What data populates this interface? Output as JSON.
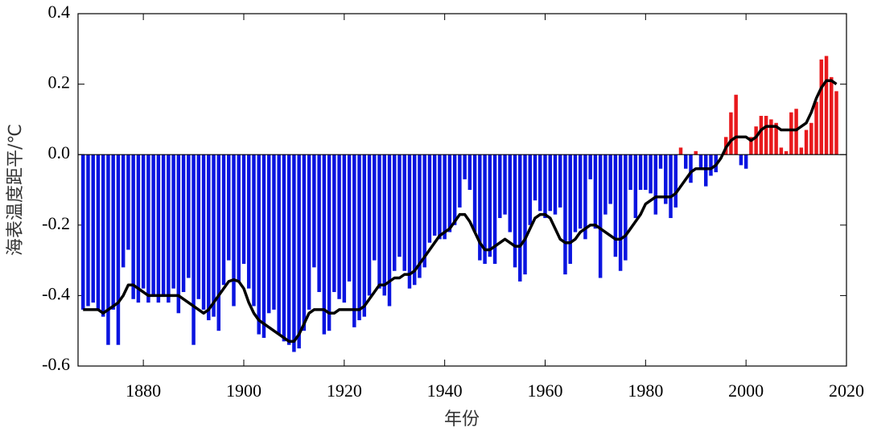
{
  "chart_data": {
    "type": "bar",
    "y_label": "海表温度距平/℃",
    "x_label": "年份",
    "x": [
      1868,
      1869,
      1870,
      1871,
      1872,
      1873,
      1874,
      1875,
      1876,
      1877,
      1878,
      1879,
      1880,
      1881,
      1882,
      1883,
      1884,
      1885,
      1886,
      1887,
      1888,
      1889,
      1890,
      1891,
      1892,
      1893,
      1894,
      1895,
      1896,
      1897,
      1898,
      1899,
      1900,
      1901,
      1902,
      1903,
      1904,
      1905,
      1906,
      1907,
      1908,
      1909,
      1910,
      1911,
      1912,
      1913,
      1914,
      1915,
      1916,
      1917,
      1918,
      1919,
      1920,
      1921,
      1922,
      1923,
      1924,
      1925,
      1926,
      1927,
      1928,
      1929,
      1930,
      1931,
      1932,
      1933,
      1934,
      1935,
      1936,
      1937,
      1938,
      1939,
      1940,
      1941,
      1942,
      1943,
      1944,
      1945,
      1946,
      1947,
      1948,
      1949,
      1950,
      1951,
      1952,
      1953,
      1954,
      1955,
      1956,
      1957,
      1958,
      1959,
      1960,
      1961,
      1962,
      1963,
      1964,
      1965,
      1966,
      1967,
      1968,
      1969,
      1970,
      1971,
      1972,
      1973,
      1974,
      1975,
      1976,
      1977,
      1978,
      1979,
      1980,
      1981,
      1982,
      1983,
      1984,
      1985,
      1986,
      1987,
      1988,
      1989,
      1990,
      1991,
      1992,
      1993,
      1994,
      1995,
      1996,
      1997,
      1998,
      1999,
      2000,
      2001,
      2002,
      2003,
      2004,
      2005,
      2006,
      2007,
      2008,
      2009,
      2010,
      2011,
      2012,
      2013,
      2014,
      2015,
      2016,
      2017,
      2018
    ],
    "values": [
      -0.44,
      -0.43,
      -0.42,
      -0.44,
      -0.46,
      -0.54,
      -0.44,
      -0.54,
      -0.32,
      -0.27,
      -0.41,
      -0.42,
      -0.38,
      -0.42,
      -0.4,
      -0.42,
      -0.4,
      -0.42,
      -0.38,
      -0.45,
      -0.39,
      -0.35,
      -0.54,
      -0.41,
      -0.44,
      -0.47,
      -0.46,
      -0.5,
      -0.37,
      -0.3,
      -0.43,
      -0.36,
      -0.31,
      -0.38,
      -0.43,
      -0.51,
      -0.52,
      -0.45,
      -0.44,
      -0.51,
      -0.53,
      -0.54,
      -0.56,
      -0.55,
      -0.5,
      -0.44,
      -0.32,
      -0.39,
      -0.51,
      -0.5,
      -0.39,
      -0.41,
      -0.42,
      -0.36,
      -0.49,
      -0.47,
      -0.46,
      -0.4,
      -0.3,
      -0.38,
      -0.4,
      -0.43,
      -0.33,
      -0.29,
      -0.33,
      -0.38,
      -0.37,
      -0.35,
      -0.32,
      -0.25,
      -0.23,
      -0.24,
      -0.24,
      -0.22,
      -0.2,
      -0.15,
      -0.07,
      -0.1,
      -0.22,
      -0.3,
      -0.31,
      -0.29,
      -0.31,
      -0.18,
      -0.17,
      -0.22,
      -0.32,
      -0.36,
      -0.34,
      -0.2,
      -0.13,
      -0.16,
      -0.18,
      -0.16,
      -0.17,
      -0.15,
      -0.34,
      -0.31,
      -0.22,
      -0.21,
      -0.24,
      -0.07,
      -0.21,
      -0.35,
      -0.17,
      -0.14,
      -0.29,
      -0.33,
      -0.3,
      -0.1,
      -0.18,
      -0.1,
      -0.1,
      -0.11,
      -0.17,
      -0.04,
      -0.14,
      -0.18,
      -0.15,
      0.02,
      -0.04,
      -0.08,
      0.01,
      -0.04,
      -0.09,
      -0.06,
      -0.05,
      0.0,
      0.05,
      0.12,
      0.17,
      -0.03,
      -0.04,
      0.05,
      0.08,
      0.11,
      0.11,
      0.1,
      0.09,
      0.02,
      0.01,
      0.12,
      0.13,
      0.02,
      0.07,
      0.09,
      0.15,
      0.27,
      0.28,
      0.22,
      0.18
    ],
    "positive_color": "#e8191c",
    "negative_color": "#0a14e0",
    "smooth": {
      "color": "#000000",
      "values": [
        -0.44,
        -0.44,
        -0.44,
        -0.44,
        -0.45,
        -0.44,
        -0.43,
        -0.42,
        -0.4,
        -0.37,
        -0.37,
        -0.38,
        -0.39,
        -0.4,
        -0.4,
        -0.4,
        -0.4,
        -0.4,
        -0.4,
        -0.4,
        -0.41,
        -0.42,
        -0.43,
        -0.44,
        -0.45,
        -0.44,
        -0.42,
        -0.4,
        -0.38,
        -0.36,
        -0.355,
        -0.36,
        -0.38,
        -0.42,
        -0.45,
        -0.47,
        -0.48,
        -0.49,
        -0.5,
        -0.51,
        -0.52,
        -0.53,
        -0.53,
        -0.51,
        -0.48,
        -0.45,
        -0.44,
        -0.44,
        -0.44,
        -0.45,
        -0.45,
        -0.44,
        -0.44,
        -0.44,
        -0.44,
        -0.44,
        -0.43,
        -0.41,
        -0.39,
        -0.37,
        -0.37,
        -0.36,
        -0.35,
        -0.35,
        -0.34,
        -0.34,
        -0.33,
        -0.31,
        -0.29,
        -0.27,
        -0.25,
        -0.23,
        -0.22,
        -0.21,
        -0.19,
        -0.17,
        -0.17,
        -0.19,
        -0.22,
        -0.25,
        -0.27,
        -0.27,
        -0.26,
        -0.25,
        -0.24,
        -0.25,
        -0.26,
        -0.26,
        -0.24,
        -0.21,
        -0.18,
        -0.17,
        -0.17,
        -0.18,
        -0.21,
        -0.24,
        -0.25,
        -0.25,
        -0.24,
        -0.22,
        -0.21,
        -0.2,
        -0.2,
        -0.21,
        -0.22,
        -0.23,
        -0.24,
        -0.24,
        -0.23,
        -0.21,
        -0.19,
        -0.17,
        -0.14,
        -0.13,
        -0.12,
        -0.12,
        -0.12,
        -0.12,
        -0.11,
        -0.09,
        -0.07,
        -0.05,
        -0.04,
        -0.04,
        -0.04,
        -0.04,
        -0.03,
        -0.01,
        0.02,
        0.04,
        0.05,
        0.05,
        0.05,
        0.04,
        0.05,
        0.07,
        0.08,
        0.08,
        0.08,
        0.07,
        0.07,
        0.07,
        0.07,
        0.08,
        0.09,
        0.12,
        0.16,
        0.19,
        0.21,
        0.21,
        0.2
      ]
    },
    "xlim": [
      1867,
      2020
    ],
    "ylim": [
      -0.6,
      0.4
    ],
    "xticks": [
      1880,
      1900,
      1920,
      1940,
      1960,
      1980,
      2000,
      2020
    ],
    "yticks": [
      -0.6,
      -0.4,
      -0.2,
      {
        "value": 0,
        "label": "0.0"
      },
      0.2,
      0.4
    ]
  }
}
